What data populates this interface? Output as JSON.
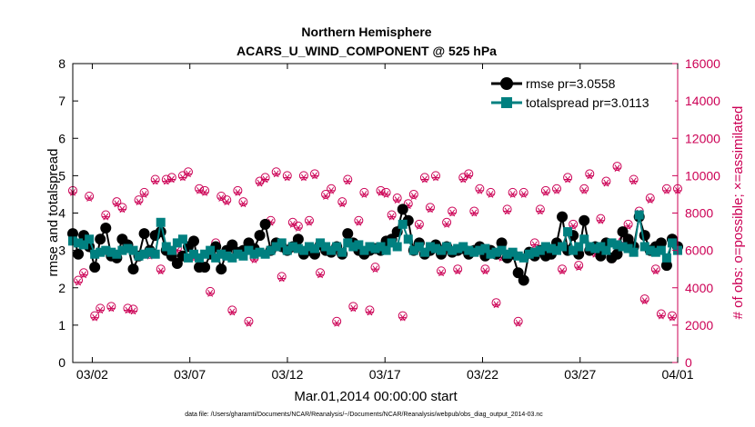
{
  "chart_data": {
    "type": "scatter",
    "title": "Northern Hemisphere",
    "subtitle": "ACARS_U_WIND_COMPONENT @ 525 hPa",
    "xlabel": "Mar.01,2014 00:00:00 start",
    "ylabel_left": "rmse and totalspread",
    "ylabel_right": "# of obs: o=possible; ×=assimilated",
    "footnote": "data file: /Users/gharamti/Documents/NCAR/Reanalysis/~/Documents/NCAR/Reanalysis/webpub/obs_diag_output_2014-03.nc",
    "xlim": [
      0,
      31
    ],
    "x_ticks": [
      {
        "x": 1,
        "label": "03/02"
      },
      {
        "x": 6,
        "label": "03/07"
      },
      {
        "x": 11,
        "label": "03/12"
      },
      {
        "x": 16,
        "label": "03/17"
      },
      {
        "x": 21,
        "label": "03/22"
      },
      {
        "x": 26,
        "label": "03/27"
      },
      {
        "x": 31,
        "label": "04/01"
      }
    ],
    "ylim_left": [
      0,
      8
    ],
    "yticks_left": [
      "0",
      "1",
      "2",
      "3",
      "4",
      "5",
      "6",
      "7",
      "8"
    ],
    "ylim_right": [
      0,
      16000
    ],
    "yticks_right": [
      "0",
      "2000",
      "4000",
      "6000",
      "8000",
      "10000",
      "12000",
      "14000",
      "16000"
    ],
    "legend_position": "top-right",
    "colors": {
      "rmse": "#000000",
      "totalspread": "#008080",
      "obs": "#cc0055"
    },
    "series": [
      {
        "name": "rmse pr=3.0558",
        "axis": "left",
        "values": [
          3.45,
          2.9,
          3.4,
          3.1,
          2.55,
          3.3,
          3.6,
          2.85,
          2.8,
          3.3,
          3.15,
          2.5,
          2.85,
          3.45,
          3.0,
          3.4,
          3.5,
          3.0,
          2.85,
          2.65,
          2.85,
          3.1,
          3.25,
          2.55,
          2.55,
          2.9,
          3.1,
          2.5,
          3.0,
          3.15,
          2.95,
          3.0,
          3.2,
          3.05,
          3.4,
          3.7,
          3.0,
          3.2,
          3.1,
          3.0,
          3.1,
          3.3,
          2.9,
          3.0,
          2.9,
          3.15,
          3.0,
          2.95,
          3.1,
          2.9,
          3.45,
          3.2,
          3.0,
          2.9,
          3.0,
          3.05,
          3.0,
          3.25,
          3.3,
          3.5,
          4.1,
          3.8,
          3.0,
          3.2,
          2.9,
          3.0,
          3.15,
          2.9,
          3.1,
          2.95,
          3.0,
          3.05,
          2.9,
          3.0,
          3.1,
          2.85,
          3.0,
          2.9,
          3.2,
          2.8,
          2.9,
          2.4,
          2.2,
          2.95,
          2.85,
          3.0,
          2.85,
          2.9,
          3.2,
          3.9,
          3.0,
          3.4,
          2.9,
          3.8,
          3.0,
          3.1,
          2.85,
          3.2,
          2.8,
          2.9,
          3.5,
          3.3,
          3.1,
          3.9,
          3.4,
          3.0,
          3.1,
          3.2,
          2.6,
          3.3,
          3.1
        ]
      },
      {
        "name": "totalspread pr=3.0113",
        "axis": "left",
        "values": [
          3.25,
          3.2,
          3.15,
          3.3,
          2.9,
          2.95,
          3.0,
          2.95,
          2.9,
          3.0,
          3.05,
          3.0,
          2.85,
          2.9,
          2.95,
          2.9,
          3.75,
          3.1,
          3.0,
          3.2,
          3.3,
          2.8,
          2.9,
          2.8,
          2.9,
          3.0,
          2.8,
          2.9,
          2.85,
          2.8,
          2.9,
          2.85,
          3.0,
          2.9,
          2.95,
          2.9,
          3.0,
          3.1,
          3.2,
          3.0,
          3.1,
          3.05,
          3.0,
          3.1,
          3.05,
          3.2,
          3.1,
          3.0,
          3.1,
          2.95,
          3.2,
          3.1,
          3.15,
          3.0,
          3.1,
          3.05,
          3.1,
          3.0,
          3.2,
          3.1,
          3.7,
          3.3,
          3.0,
          3.1,
          2.95,
          3.1,
          3.05,
          3.0,
          3.1,
          3.0,
          3.05,
          3.1,
          3.0,
          2.95,
          3.0,
          3.05,
          2.9,
          2.95,
          3.0,
          2.9,
          2.95,
          2.85,
          2.8,
          2.9,
          2.95,
          3.0,
          3.1,
          3.05,
          3.0,
          3.1,
          3.5,
          3.0,
          3.1,
          3.3,
          3.1,
          3.05,
          3.1,
          3.0,
          3.2,
          3.15,
          3.1,
          3.05,
          2.95,
          3.95,
          3.1,
          3.0,
          2.95,
          3.0,
          2.8,
          3.2,
          3.0
        ]
      },
      {
        "name": "obs possible",
        "axis": "right",
        "marker": "circle",
        "values": [
          9200,
          4400,
          4800,
          8900,
          2500,
          2900,
          7900,
          3000,
          8600,
          8300,
          2900,
          2850,
          8700,
          9100,
          5800,
          9800,
          5000,
          9800,
          9900,
          6100,
          10000,
          10200,
          5700,
          9300,
          9200,
          3800,
          6400,
          8900,
          8700,
          2800,
          9200,
          8600,
          2200,
          5600,
          9700,
          9900,
          7600,
          10200,
          4600,
          10000,
          7500,
          7300,
          10000,
          7600,
          10100,
          4800,
          9000,
          9300,
          2200,
          8600,
          9800,
          3000,
          7600,
          9100,
          2800,
          5100,
          9200,
          9100,
          7900,
          8800,
          2500,
          8500,
          9000,
          7400,
          9900,
          8300,
          10000,
          4900,
          7500,
          8100,
          5000,
          9900,
          10100,
          8100,
          9300,
          5000,
          9100,
          3200,
          5700,
          8200,
          9100,
          2200,
          9100,
          5800,
          6400,
          8200,
          9200,
          5800,
          9300,
          5000,
          9900,
          7400,
          5200,
          9300,
          10100,
          5900,
          7700,
          9700,
          5600,
          10500,
          6500,
          7400,
          9800,
          8100,
          3400,
          8800,
          5000,
          2600,
          9300,
          2500,
          9300
        ]
      },
      {
        "name": "obs assimilated",
        "axis": "right",
        "marker": "star",
        "values": [
          9100,
          4300,
          4700,
          8800,
          2400,
          2800,
          7800,
          2900,
          8500,
          8200,
          2800,
          2750,
          8600,
          9000,
          5700,
          9700,
          4900,
          9700,
          9800,
          6000,
          9900,
          10100,
          5600,
          9200,
          9100,
          3700,
          6300,
          8800,
          8600,
          2700,
          9100,
          8500,
          2100,
          5500,
          9600,
          9800,
          7500,
          10100,
          4500,
          9900,
          7400,
          7200,
          9900,
          7500,
          10000,
          4700,
          8900,
          9200,
          2100,
          8500,
          9700,
          2900,
          7500,
          9000,
          2700,
          5000,
          9100,
          9000,
          7800,
          8700,
          2400,
          8400,
          8900,
          7300,
          9800,
          8200,
          9900,
          4800,
          7400,
          8000,
          4900,
          9800,
          10000,
          8000,
          9200,
          4900,
          9000,
          3100,
          5600,
          8100,
          9000,
          2100,
          9000,
          5700,
          6300,
          8100,
          9100,
          5700,
          9200,
          4900,
          9800,
          7300,
          5100,
          9200,
          10000,
          5800,
          7600,
          9600,
          5500,
          10400,
          6400,
          7300,
          9700,
          8000,
          3300,
          8700,
          4900,
          2500,
          9200,
          2400,
          9200
        ]
      }
    ]
  }
}
